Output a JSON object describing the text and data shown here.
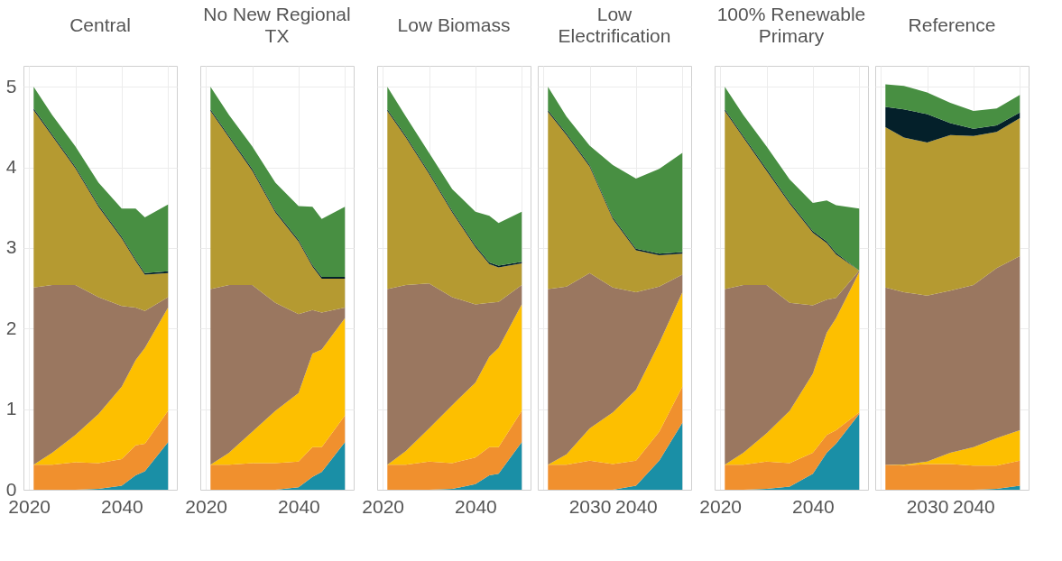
{
  "chart_data": [
    {
      "type": "area",
      "title": "Central",
      "stacked": true,
      "grid": true,
      "x": [
        2021,
        2025,
        2030,
        2035,
        2040,
        2043,
        2045,
        2050
      ],
      "xlim": [
        2018.8,
        2051.9
      ],
      "xticks": [
        2020,
        {
          "value": 2030,
          "label": null
        },
        2040,
        {
          "value": 2050,
          "label": null
        }
      ],
      "ylim": [
        0,
        5.26
      ],
      "yticks": [
        0,
        1,
        2,
        3,
        4,
        5
      ],
      "series": [
        {
          "color": "#1a8fa6",
          "values": [
            0,
            0,
            0,
            0.01,
            0.05,
            0.18,
            0.23,
            0.59
          ]
        },
        {
          "color": "#f0902e",
          "values": [
            0.31,
            0.31,
            0.34,
            0.32,
            0.33,
            0.37,
            0.34,
            0.39
          ]
        },
        {
          "color": "#fdbf00",
          "values": [
            0,
            0.15,
            0.34,
            0.61,
            0.9,
            1.06,
            1.19,
            1.28
          ]
        },
        {
          "color": "#9a7760",
          "values": [
            2.2,
            2.08,
            1.86,
            1.45,
            1.0,
            0.65,
            0.46,
            0.13
          ]
        },
        {
          "color": "#b59a31",
          "values": [
            2.2,
            1.85,
            1.45,
            1.12,
            0.84,
            0.58,
            0.45,
            0.3
          ]
        },
        {
          "color": "#04202a",
          "values": [
            0.02,
            0.02,
            0.02,
            0.02,
            0.02,
            0.02,
            0.02,
            0.02
          ]
        },
        {
          "color": "#488f42",
          "values": [
            0.27,
            0.24,
            0.25,
            0.28,
            0.35,
            0.63,
            0.69,
            0.83
          ]
        }
      ]
    },
    {
      "type": "area",
      "title": "No New Regional TX",
      "stacked": true,
      "grid": true,
      "tick_labels": "x",
      "x": [
        2021,
        2025,
        2030,
        2035,
        2040,
        2043,
        2045,
        2050
      ],
      "xlim": [
        2018.8,
        2051.9
      ],
      "xticks": [
        2020,
        {
          "value": 2030,
          "label": null
        },
        2040,
        {
          "value": 2050,
          "label": null
        }
      ],
      "ylim": [
        0,
        5.26
      ],
      "yticks": [
        0,
        1,
        2,
        3,
        4,
        5
      ],
      "series": [
        {
          "color": "#1a8fa6",
          "values": [
            0,
            0,
            0,
            0,
            0.03,
            0.16,
            0.22,
            0.59
          ]
        },
        {
          "color": "#f0902e",
          "values": [
            0.31,
            0.31,
            0.33,
            0.33,
            0.32,
            0.37,
            0.31,
            0.33
          ]
        },
        {
          "color": "#fdbf00",
          "values": [
            0,
            0.15,
            0.39,
            0.65,
            0.85,
            1.16,
            1.21,
            1.21
          ]
        },
        {
          "color": "#9a7760",
          "values": [
            2.18,
            2.08,
            1.82,
            1.34,
            0.98,
            0.54,
            0.46,
            0.13
          ]
        },
        {
          "color": "#b59a31",
          "values": [
            2.21,
            1.83,
            1.42,
            1.12,
            0.9,
            0.54,
            0.42,
            0.36
          ]
        },
        {
          "color": "#04202a",
          "values": [
            0.02,
            0.02,
            0.02,
            0.02,
            0.02,
            0.02,
            0.02,
            0.02
          ]
        },
        {
          "color": "#488f42",
          "values": [
            0.28,
            0.26,
            0.28,
            0.35,
            0.42,
            0.72,
            0.72,
            0.87
          ]
        }
      ]
    },
    {
      "type": "area",
      "title": "Low Biomass",
      "stacked": true,
      "grid": true,
      "tick_labels": "x",
      "x": [
        2021,
        2025,
        2030,
        2035,
        2040,
        2043,
        2045,
        2050
      ],
      "xlim": [
        2018.8,
        2051.9
      ],
      "xticks": [
        2020,
        {
          "value": 2030,
          "label": null
        },
        2040,
        {
          "value": 2050,
          "label": null
        }
      ],
      "ylim": [
        0,
        5.26
      ],
      "yticks": [
        0,
        1,
        2,
        3,
        4,
        5
      ],
      "series": [
        {
          "color": "#1a8fa6",
          "values": [
            0,
            0,
            0,
            0.01,
            0.07,
            0.18,
            0.2,
            0.59
          ]
        },
        {
          "color": "#f0902e",
          "values": [
            0.31,
            0.31,
            0.35,
            0.32,
            0.33,
            0.35,
            0.33,
            0.39
          ]
        },
        {
          "color": "#fdbf00",
          "values": [
            0,
            0.17,
            0.41,
            0.72,
            0.93,
            1.12,
            1.23,
            1.32
          ]
        },
        {
          "color": "#9a7760",
          "values": [
            2.18,
            2.06,
            1.8,
            1.34,
            0.97,
            0.67,
            0.57,
            0.24
          ]
        },
        {
          "color": "#b59a31",
          "values": [
            2.21,
            1.83,
            1.36,
            1.05,
            0.71,
            0.48,
            0.43,
            0.27
          ]
        },
        {
          "color": "#04202a",
          "values": [
            0.02,
            0.02,
            0.02,
            0.02,
            0.02,
            0.02,
            0.02,
            0.02
          ]
        },
        {
          "color": "#488f42",
          "values": [
            0.28,
            0.24,
            0.24,
            0.27,
            0.42,
            0.58,
            0.53,
            0.62
          ]
        }
      ]
    },
    {
      "type": "area",
      "title": "Low Electrification",
      "stacked": true,
      "grid": true,
      "tick_labels": "x",
      "x": [
        2021,
        2025,
        2030,
        2035,
        2040,
        2045,
        2050
      ],
      "xlim": [
        2018.8,
        2051.9
      ],
      "xticks": [
        {
          "value": 2020,
          "label": null
        },
        2030,
        2040,
        {
          "value": 2050,
          "label": null
        }
      ],
      "ylim": [
        0,
        5.26
      ],
      "yticks": [
        0,
        1,
        2,
        3,
        4,
        5
      ],
      "series": [
        {
          "color": "#1a8fa6",
          "values": [
            0,
            0,
            0,
            0,
            0.05,
            0.36,
            0.83
          ]
        },
        {
          "color": "#f0902e",
          "values": [
            0.31,
            0.31,
            0.36,
            0.32,
            0.31,
            0.36,
            0.45
          ]
        },
        {
          "color": "#fdbf00",
          "values": [
            0,
            0.13,
            0.4,
            0.64,
            0.88,
            1.1,
            1.17
          ]
        },
        {
          "color": "#9a7760",
          "values": [
            2.18,
            2.08,
            1.93,
            1.55,
            1.21,
            0.7,
            0.22
          ]
        },
        {
          "color": "#b59a31",
          "values": [
            2.2,
            1.88,
            1.32,
            0.85,
            0.52,
            0.39,
            0.26
          ]
        },
        {
          "color": "#04202a",
          "values": [
            0.02,
            0.02,
            0.02,
            0.02,
            0.02,
            0.02,
            0.02
          ]
        },
        {
          "color": "#488f42",
          "values": [
            0.29,
            0.21,
            0.24,
            0.65,
            0.87,
            1.05,
            1.23
          ]
        }
      ]
    },
    {
      "type": "area",
      "title": "100% Renewable Primary",
      "stacked": true,
      "grid": true,
      "tick_labels": "x",
      "x": [
        2021,
        2025,
        2030,
        2035,
        2040,
        2043,
        2045,
        2050
      ],
      "xlim": [
        2018.8,
        2051.9
      ],
      "xticks": [
        2020,
        {
          "value": 2030,
          "label": null
        },
        2040,
        {
          "value": 2050,
          "label": null
        }
      ],
      "ylim": [
        0,
        5.26
      ],
      "yticks": [
        0,
        1,
        2,
        3,
        4,
        5
      ],
      "series": [
        {
          "color": "#1a8fa6",
          "values": [
            0,
            0,
            0.01,
            0.04,
            0.2,
            0.46,
            0.57,
            0.94
          ]
        },
        {
          "color": "#f0902e",
          "values": [
            0.31,
            0.31,
            0.34,
            0.29,
            0.26,
            0.22,
            0.17,
            0.02
          ]
        },
        {
          "color": "#fdbf00",
          "values": [
            0,
            0.15,
            0.35,
            0.65,
            0.98,
            1.27,
            1.39,
            1.74
          ]
        },
        {
          "color": "#9a7760",
          "values": [
            2.18,
            2.08,
            1.84,
            1.34,
            0.85,
            0.41,
            0.25,
            0.02
          ]
        },
        {
          "color": "#b59a31",
          "values": [
            2.21,
            1.83,
            1.42,
            1.23,
            0.9,
            0.7,
            0.54,
            0
          ]
        },
        {
          "color": "#04202a",
          "values": [
            0.02,
            0.02,
            0.02,
            0.02,
            0.02,
            0.02,
            0.02,
            0
          ]
        },
        {
          "color": "#488f42",
          "values": [
            0.28,
            0.26,
            0.28,
            0.28,
            0.35,
            0.51,
            0.59,
            0.77
          ]
        }
      ]
    },
    {
      "type": "area",
      "title": "Reference",
      "stacked": true,
      "grid": true,
      "tick_labels": "x",
      "x": [
        2021,
        2025,
        2030,
        2035,
        2040,
        2045,
        2050
      ],
      "xlim": [
        2018.8,
        2051.9
      ],
      "xticks": [
        {
          "value": 2020,
          "label": null
        },
        2030,
        2040,
        {
          "value": 2050,
          "label": null
        }
      ],
      "ylim": [
        0,
        5.26
      ],
      "yticks": [
        0,
        1,
        2,
        3,
        4,
        5
      ],
      "series": [
        {
          "color": "#1a8fa6",
          "values": [
            0,
            0,
            0,
            0,
            0,
            0.01,
            0.05
          ]
        },
        {
          "color": "#f0902e",
          "values": [
            0.31,
            0.3,
            0.32,
            0.32,
            0.3,
            0.29,
            0.31
          ]
        },
        {
          "color": "#fdbf00",
          "values": [
            0,
            0.01,
            0.03,
            0.14,
            0.23,
            0.34,
            0.38
          ]
        },
        {
          "color": "#9a7760",
          "values": [
            2.2,
            2.14,
            2.06,
            2.01,
            2.01,
            2.11,
            2.16
          ]
        },
        {
          "color": "#b59a31",
          "values": [
            1.99,
            1.92,
            1.9,
            1.93,
            1.85,
            1.69,
            1.71
          ]
        },
        {
          "color": "#04202a",
          "values": [
            0.25,
            0.35,
            0.35,
            0.15,
            0.09,
            0.08,
            0.07
          ]
        },
        {
          "color": "#488f42",
          "values": [
            0.28,
            0.29,
            0.27,
            0.25,
            0.22,
            0.21,
            0.22
          ]
        }
      ]
    }
  ]
}
